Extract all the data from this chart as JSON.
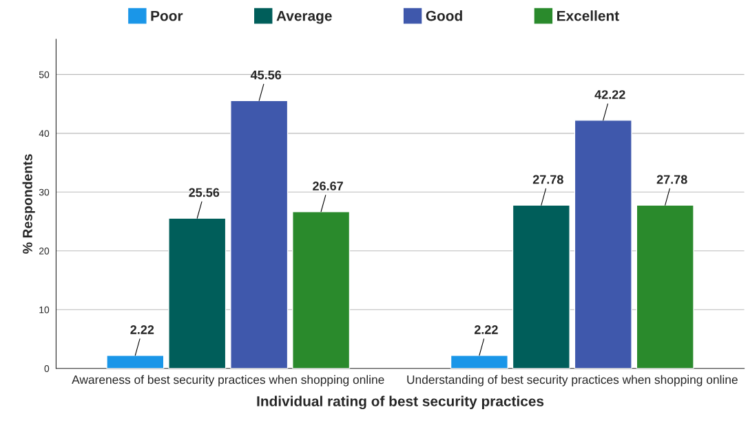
{
  "chart_data": {
    "type": "bar",
    "xlabel": "Individual rating of best security practices",
    "ylabel": "% Respondents",
    "categories": [
      "Awareness of best security practices when shopping online",
      "Understanding of best security practices when shopping online"
    ],
    "series": [
      {
        "name": "Poor",
        "color": "#1a96e8",
        "values": [
          2.22,
          2.22
        ]
      },
      {
        "name": "Average",
        "color": "#005e5a",
        "values": [
          25.56,
          27.78
        ]
      },
      {
        "name": "Good",
        "color": "#3f58ac",
        "values": [
          45.56,
          42.22
        ]
      },
      {
        "name": "Excellent",
        "color": "#2a8a2c",
        "values": [
          26.67,
          27.78
        ]
      }
    ],
    "ylim": [
      0,
      56
    ],
    "yticks": [
      0,
      10,
      20,
      30,
      40,
      50
    ],
    "grid": "y",
    "legend": "top",
    "data_labels": true
  }
}
